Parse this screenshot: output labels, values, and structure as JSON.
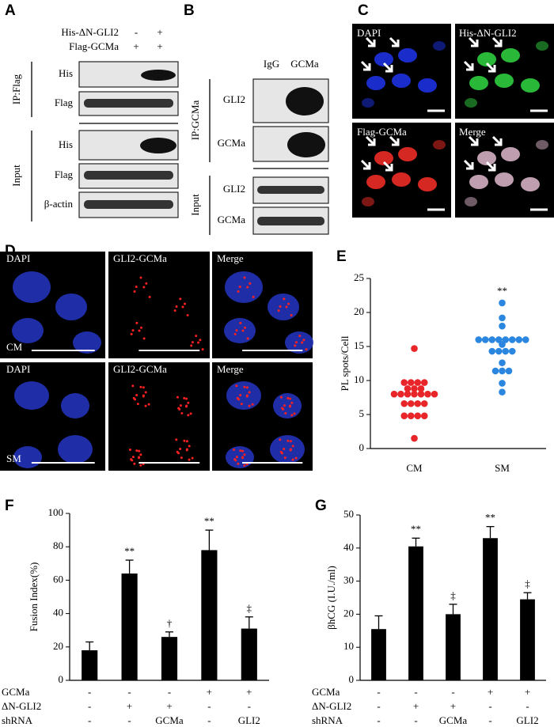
{
  "panels": {
    "A": {
      "letter": "A",
      "header": [
        {
          "label": "His-ΔN-GLI2",
          "lanes": [
            "-",
            "+"
          ]
        },
        {
          "label": "Flag-GCMa",
          "lanes": [
            "+",
            "+"
          ]
        }
      ],
      "groups": [
        {
          "label": "IP:Flag",
          "blots": [
            "His",
            "Flag"
          ]
        },
        {
          "label": "Input",
          "blots": [
            "His",
            "Flag",
            "β-actin"
          ]
        }
      ]
    },
    "B": {
      "letter": "B",
      "lanes": [
        "IgG",
        "GCMa"
      ],
      "groups": [
        {
          "label": "IP:GCMa",
          "blots": [
            "GLI2",
            "GCMa"
          ]
        },
        {
          "label": "Input",
          "blots": [
            "GLI2",
            "GCMa"
          ]
        }
      ]
    },
    "C": {
      "letter": "C",
      "images": [
        "DAPI",
        "His-ΔN-GLI2",
        "Flag-GCMa",
        "Merge"
      ]
    },
    "D": {
      "letter": "D",
      "columns": [
        "DAPI",
        "GLI2-GCMa",
        "Merge"
      ],
      "rows": [
        "CM",
        "SM"
      ]
    }
  },
  "chart_data": [
    {
      "type": "strip",
      "letter": "E",
      "y_label": "PL spots/Cell",
      "categories": [
        "CM",
        "SM"
      ],
      "series": [
        {
          "color": "#e8262a",
          "values": [
            14.7,
            9.7,
            9.7,
            9.7,
            9.7,
            8.8,
            8.8,
            8.8,
            8,
            8,
            8,
            8,
            8,
            8,
            8,
            6.6,
            6.6,
            6.6,
            6.6,
            4.8,
            4.8,
            4.8,
            4.8,
            1.5
          ]
        },
        {
          "color": "#2b86e0",
          "values": [
            21.4,
            19.2,
            18,
            16,
            16,
            16,
            16,
            16,
            16,
            16,
            16,
            15.3,
            14.3,
            14.3,
            14.3,
            14.3,
            12.6,
            11.4,
            11.4,
            11.4,
            9.6,
            8.3
          ]
        }
      ],
      "annotations": [
        null,
        "**"
      ],
      "ylim": [
        0,
        25
      ],
      "yticks": [
        0,
        5,
        10,
        15,
        20,
        25
      ]
    },
    {
      "type": "bar",
      "letter": "F",
      "y_label": "Fusion Index(%)",
      "color": "#000000",
      "values": [
        18,
        64,
        26,
        78,
        31
      ],
      "errors": [
        5,
        8,
        3,
        12,
        7
      ],
      "annotations": [
        null,
        "**",
        "†",
        "**",
        "‡"
      ],
      "conditions": [
        {
          "label": "GCMa",
          "values": [
            "-",
            "-",
            "-",
            "+",
            "+"
          ]
        },
        {
          "label": "ΔN-GLI2",
          "values": [
            "-",
            "+",
            "+",
            "-",
            "-"
          ]
        },
        {
          "label": "shRNA",
          "values": [
            "-",
            "-",
            "GCMa",
            "-",
            "GLI2"
          ]
        }
      ],
      "ylim": [
        0,
        100
      ],
      "yticks": [
        0,
        20,
        40,
        60,
        80,
        100
      ]
    },
    {
      "type": "bar",
      "letter": "G",
      "y_label": "βhCG (I.U./ml)",
      "color": "#000000",
      "values": [
        15.5,
        40.5,
        20,
        43,
        24.5
      ],
      "errors": [
        4,
        2.5,
        3,
        3.5,
        2
      ],
      "annotations": [
        null,
        "**",
        "‡",
        "**",
        "‡"
      ],
      "conditions": [
        {
          "label": "GCMa",
          "values": [
            "-",
            "-",
            "-",
            "+",
            "+"
          ]
        },
        {
          "label": "ΔN-GLI2",
          "values": [
            "-",
            "+",
            "+",
            "-",
            "-"
          ]
        },
        {
          "label": "shRNA",
          "values": [
            "-",
            "-",
            "GCMa",
            "-",
            "GLI2"
          ]
        }
      ],
      "ylim": [
        0,
        50
      ],
      "yticks": [
        0,
        10,
        20,
        30,
        40,
        50
      ]
    }
  ]
}
